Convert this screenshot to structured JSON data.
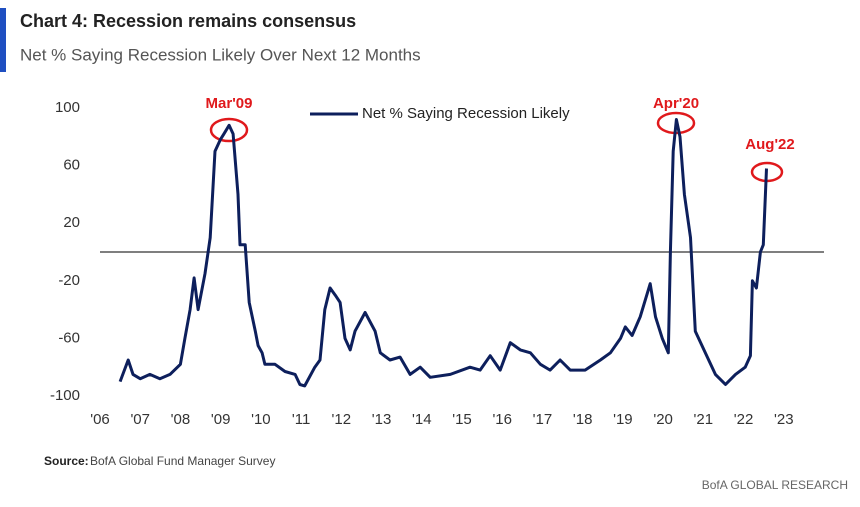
{
  "chart_data": {
    "type": "line",
    "title": "Chart 4: Recession remains consensus",
    "subtitle": "Net % Saying Recession Likely Over Next 12 Months",
    "source_label": "Source:",
    "source": "BofA Global Fund Manager Survey",
    "brand": "BofA GLOBAL RESEARCH",
    "annotations": [
      "Mar'09",
      "Apr'20",
      "Aug'22"
    ],
    "legend": "top",
    "grid": false,
    "xlim": [
      2006,
      2024
    ],
    "xticks": [
      {
        "value": 2006,
        "label": "'06"
      },
      {
        "value": 2007,
        "label": "'07"
      },
      {
        "value": 2008,
        "label": "'08"
      },
      {
        "value": 2009,
        "label": "'09"
      },
      {
        "value": 2010,
        "label": "'10"
      },
      {
        "value": 2011,
        "label": "'11"
      },
      {
        "value": 2012,
        "label": "'12"
      },
      {
        "value": 2013,
        "label": "'13"
      },
      {
        "value": 2014,
        "label": "'14"
      },
      {
        "value": 2015,
        "label": "'15"
      },
      {
        "value": 2016,
        "label": "'16"
      },
      {
        "value": 2017,
        "label": "'17"
      },
      {
        "value": 2018,
        "label": "'18"
      },
      {
        "value": 2019,
        "label": "'19"
      },
      {
        "value": 2020,
        "label": "'20"
      },
      {
        "value": 2021,
        "label": "'21"
      },
      {
        "value": 2022,
        "label": "'22"
      },
      {
        "value": 2023,
        "label": "'23"
      }
    ],
    "ylim": [
      -100,
      100
    ],
    "yticks": [
      100,
      60,
      20,
      -20,
      -60,
      -100
    ],
    "x": [
      2006.5,
      2006.7,
      2006.82,
      2007.0,
      2007.24,
      2007.49,
      2007.74,
      2008.0,
      2008.11,
      2008.24,
      2008.34,
      2008.44,
      2008.61,
      2008.74,
      2008.86,
      2008.99,
      2009.08,
      2009.21,
      2009.31,
      2009.43,
      2009.48,
      2009.61,
      2009.71,
      2009.86,
      2009.93,
      2010.03,
      2010.1,
      2010.35,
      2010.6,
      2010.85,
      2010.97,
      2011.09,
      2011.34,
      2011.47,
      2011.59,
      2011.72,
      2011.85,
      2011.97,
      2012.09,
      2012.22,
      2012.34,
      2012.59,
      2012.84,
      2012.97,
      2013.21,
      2013.46,
      2013.71,
      2013.96,
      2014.21,
      2014.71,
      2015.2,
      2015.45,
      2015.7,
      2015.95,
      2016.2,
      2016.45,
      2016.7,
      2016.95,
      2017.19,
      2017.44,
      2017.69,
      2018.06,
      2018.44,
      2018.69,
      2018.94,
      2019.06,
      2019.23,
      2019.43,
      2019.68,
      2019.81,
      2019.98,
      2020.13,
      2020.18,
      2020.25,
      2020.33,
      2020.42,
      2020.53,
      2020.68,
      2020.8,
      2021.05,
      2021.3,
      2021.55,
      2021.8,
      2022.04,
      2022.17,
      2022.22,
      2022.32,
      2022.42,
      2022.49,
      2022.57
    ],
    "series": [
      {
        "name": "Net % Saying Recession Likely",
        "color": "#0d1f5c",
        "values": [
          -90,
          -75,
          -85,
          -88,
          -85,
          -88,
          -85,
          -78,
          -60,
          -40,
          -18,
          -40,
          -15,
          10,
          70,
          78,
          82,
          88,
          82,
          40,
          5,
          5,
          -35,
          -55,
          -65,
          -70,
          -78,
          -78,
          -83,
          -85,
          -92,
          -93,
          -80,
          -75,
          -40,
          -25,
          -30,
          -35,
          -60,
          -68,
          -55,
          -42,
          -55,
          -70,
          -75,
          -73,
          -85,
          -80,
          -87,
          -85,
          -80,
          -82,
          -72,
          -82,
          -63,
          -68,
          -70,
          -78,
          -82,
          -75,
          -82,
          -82,
          -75,
          -70,
          -60,
          -52,
          -58,
          -45,
          -22,
          -45,
          -60,
          -70,
          0,
          70,
          92,
          80,
          40,
          10,
          -55,
          -70,
          -85,
          -92,
          -85,
          -80,
          -72,
          -20,
          -25,
          0,
          5,
          58
        ]
      }
    ]
  }
}
